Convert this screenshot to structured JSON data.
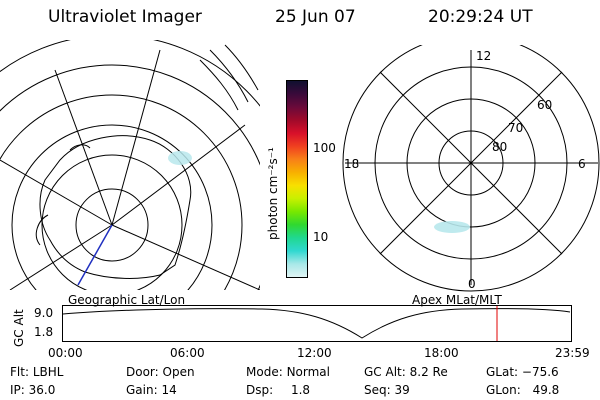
{
  "header": {
    "instrument": "Ultraviolet Imager",
    "date": "25 Jun 07",
    "time": "20:29:24 UT"
  },
  "left_map": {
    "caption": "Geographic Lat/Lon"
  },
  "colorbar": {
    "unit_label": "photon cm⁻²s⁻¹",
    "ticks": [
      "100",
      "10"
    ],
    "colors": [
      "#101030",
      "#3a0a3a",
      "#6a0a3a",
      "#a00a2a",
      "#d8102a",
      "#f04020",
      "#f88018",
      "#f8b000",
      "#f8e000",
      "#c8f000",
      "#78e800",
      "#30d830",
      "#20d890",
      "#30d8d0",
      "#a8e8e8",
      "#e0f4f4"
    ]
  },
  "polar_plot": {
    "caption": "Apex MLat/MLT",
    "mlt_labels": {
      "top": "12",
      "left": "18",
      "right": "6",
      "bottom": "0"
    },
    "lat_labels": [
      "60",
      "70",
      "80"
    ]
  },
  "altitude_plot": {
    "ylabel": "GC Alt",
    "yticks": [
      "9.0",
      "1.8"
    ],
    "xticks": [
      "00:00",
      "06:00",
      "12:00",
      "18:00",
      "23:59"
    ],
    "marker_color": "#e00000"
  },
  "info": {
    "filter": {
      "label": "Flt:",
      "value": "LBHL"
    },
    "ip": {
      "label": "IP:",
      "value": "36.0"
    },
    "door": {
      "label": "Door:",
      "value": "Open"
    },
    "gain": {
      "label": "Gain:",
      "value": "14"
    },
    "mode": {
      "label": "Mode:",
      "value": "Normal"
    },
    "dsp": {
      "label": "Dsp:",
      "value": "1.8"
    },
    "gc_alt": {
      "label": "GC Alt:",
      "value": "8.2 Re"
    },
    "seq": {
      "label": "Seq:",
      "value": "39"
    },
    "glat": {
      "label": "GLat:",
      "value": "−75.6"
    },
    "glon": {
      "label": "GLon:",
      "value": "49.8"
    }
  }
}
